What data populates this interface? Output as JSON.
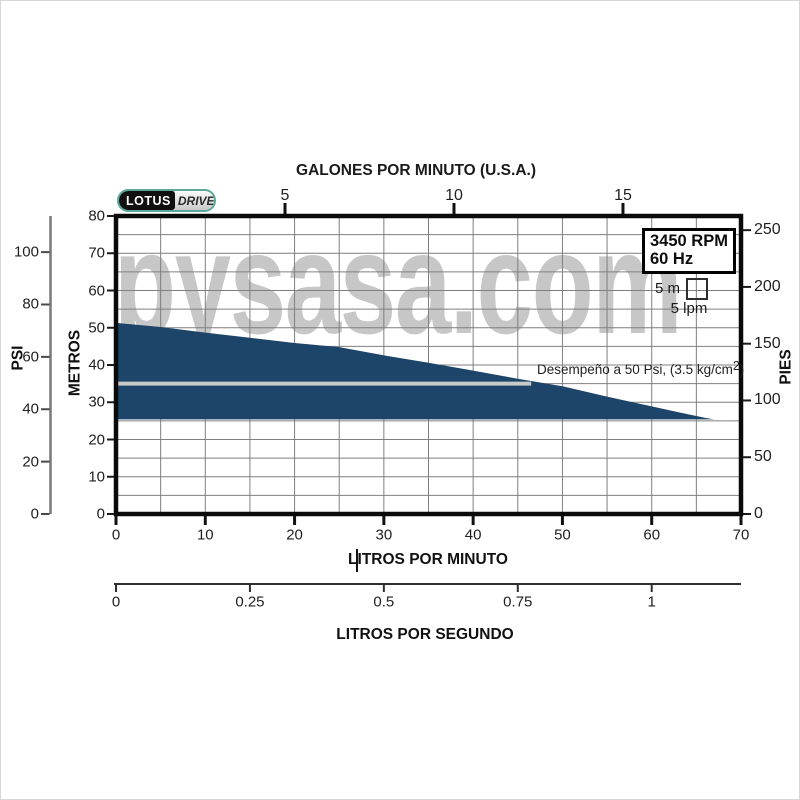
{
  "watermark": "pysasa.com",
  "logo": {
    "brand": "LOTUS",
    "sub": "DRIVE"
  },
  "info_box": {
    "line1": "3450 RPM",
    "line2": "60 Hz"
  },
  "scale_legend": {
    "vertical": "5 m",
    "horizontal": "5 lpm"
  },
  "performance_note": {
    "text": "Desempeño a 50 Psi, (3.5 kg/cm",
    "sup": "2",
    "suffix": ")"
  },
  "axes": {
    "top": {
      "title": "GALONES POR MINUTO (U.S.A.)",
      "ticks": [
        5,
        10,
        15
      ]
    },
    "bottom": {
      "title": "LITROS POR MINUTO",
      "ticks": [
        0,
        10,
        20,
        30,
        40,
        50,
        60,
        70
      ]
    },
    "lps": {
      "title": "LITROS POR SEGUNDO",
      "ticks": [
        "0",
        "0.25",
        "0.5",
        "0.75",
        "1"
      ],
      "tick_values": [
        0,
        0.25,
        0.5,
        0.75,
        1
      ]
    },
    "left_outer": {
      "title": "PSI",
      "ticks": [
        0,
        20,
        40,
        60,
        80,
        100
      ]
    },
    "left_inner": {
      "title": "METROS",
      "ticks": [
        0,
        10,
        20,
        30,
        40,
        50,
        60,
        70,
        80
      ]
    },
    "right": {
      "title": "PIES",
      "ticks": [
        0,
        50,
        100,
        150,
        200,
        250
      ]
    }
  },
  "chart_data": {
    "type": "area",
    "title": "",
    "xlabel": "LITROS POR MINUTO",
    "ylabel": "METROS",
    "xlim": [
      0,
      70
    ],
    "ylim": [
      0,
      80
    ],
    "grid_step": {
      "x_lpm": 5,
      "y_m": 5
    },
    "rpm": "3450 RPM",
    "frequency": "60 Hz",
    "upper_curve_lpm_m": [
      [
        0,
        51.3
      ],
      [
        5,
        50.2
      ],
      [
        10,
        48.7
      ],
      [
        15,
        47.3
      ],
      [
        20,
        45.9
      ],
      [
        25,
        44.8
      ],
      [
        30,
        42.6
      ],
      [
        35,
        40.6
      ],
      [
        40,
        38.5
      ],
      [
        45,
        36.3
      ],
      [
        50,
        34.3
      ],
      [
        55,
        31.5
      ],
      [
        60,
        28.9
      ],
      [
        63,
        27.3
      ],
      [
        66,
        25.8
      ],
      [
        67,
        25.4
      ]
    ],
    "lower_bound_m": 25.4,
    "pressure_line": {
      "metros": 35,
      "from_lpm": 0,
      "to_lpm": 46.5,
      "label": "Desempeño a 50 Psi, (3.5 kg/cm2)"
    },
    "unit_conversions": {
      "gpm_to_lpm": 3.78541,
      "lps_to_lpm": 60,
      "feet_per_80m": 262.467
    }
  },
  "colors": {
    "fill": "#1d4469",
    "grid": "#7f7f7f",
    "watermark": "#c7c7c7",
    "pressure_line": "#c8c8c8",
    "border": "#0a0a0a",
    "outer_axis": "#787878"
  }
}
